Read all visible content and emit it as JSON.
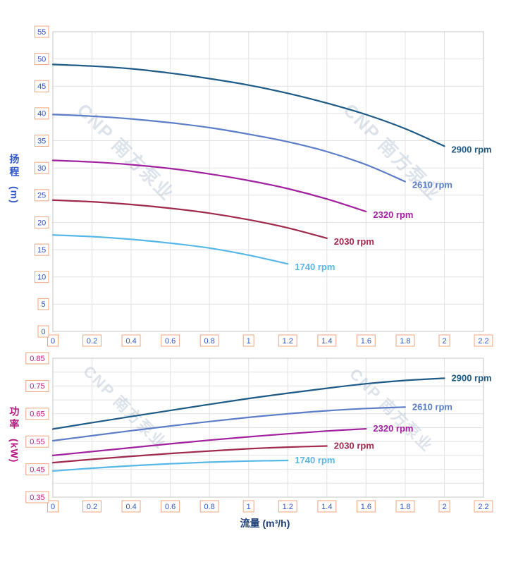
{
  "labels": {
    "head_axis_cn": "扬程",
    "head_axis_unit": "(m)",
    "power_axis_cn": "功率",
    "power_axis_unit": "(kW)",
    "x_axis_title": "流量 (m³/h)"
  },
  "watermark": {
    "text": "CNP 南方泵业",
    "color": "#9fb1c8",
    "opacity": 0.35
  },
  "style": {
    "grid_color": "#e2e2e2",
    "frame_color": "#c6c6c6",
    "tick_box_border": "#eda57f",
    "tick_box_fill": "#ffffff",
    "x_tick_color": "#2f55c9",
    "head_tick_color": "#2f55c9",
    "power_tick_color": "#c2187e",
    "head_title_color": "#2f55c9",
    "power_title_color": "#b5177f",
    "x_title_color": "#1c3f77"
  },
  "chart_data": [
    {
      "id": "head",
      "type": "line",
      "title": "",
      "ylabel": "扬程 (m)",
      "xlabel": "流量 (m³/h)",
      "xlim": [
        0,
        2.2
      ],
      "ylim": [
        0,
        55
      ],
      "grid": true,
      "legend_position": "end-of-line-labels",
      "xticks": [
        0,
        0.2,
        0.4,
        0.6,
        0.8,
        1,
        1.2,
        1.4,
        1.6,
        1.8,
        2,
        2.2
      ],
      "xtick_labels": [
        0,
        0.2,
        0.4,
        0.6,
        0.8,
        1,
        1.2,
        1.4,
        1.6,
        1.8,
        2,
        2.2
      ],
      "yticks": [
        0,
        5,
        10,
        15,
        20,
        25,
        30,
        35,
        40,
        45,
        50,
        55
      ],
      "ytick_labels": [
        0,
        5,
        10,
        15,
        20,
        25,
        30,
        35,
        40,
        45,
        50,
        55
      ],
      "series": [
        {
          "name": "2900 rpm",
          "color": "#1d5a86",
          "x": [
            0,
            0.2,
            0.4,
            0.6,
            0.8,
            1,
            1.2,
            1.4,
            1.6,
            1.8,
            2
          ],
          "y": [
            49.0,
            48.7,
            48.2,
            47.4,
            46.4,
            45.2,
            43.7,
            41.9,
            39.8,
            37.2,
            34.0
          ]
        },
        {
          "name": "2610 rpm",
          "color": "#5b7ec7",
          "x": [
            0,
            0.2,
            0.4,
            0.6,
            0.8,
            1,
            1.2,
            1.4,
            1.6,
            1.8
          ],
          "y": [
            39.8,
            39.5,
            39.0,
            38.3,
            37.4,
            36.2,
            34.8,
            33.0,
            30.6,
            27.5
          ]
        },
        {
          "name": "2320 rpm",
          "color": "#a1219f",
          "x": [
            0,
            0.2,
            0.4,
            0.6,
            0.8,
            1,
            1.2,
            1.4,
            1.6
          ],
          "y": [
            31.4,
            31.1,
            30.6,
            29.9,
            28.9,
            27.7,
            26.2,
            24.3,
            22.0
          ]
        },
        {
          "name": "2030 rpm",
          "color": "#a02a4d",
          "x": [
            0,
            0.2,
            0.4,
            0.6,
            0.8,
            1,
            1.2,
            1.4
          ],
          "y": [
            24.1,
            23.8,
            23.3,
            22.6,
            21.7,
            20.5,
            19.0,
            17.1
          ]
        },
        {
          "name": "1740 rpm",
          "color": "#57b7e6",
          "x": [
            0,
            0.2,
            0.4,
            0.6,
            0.8,
            1,
            1.2
          ],
          "y": [
            17.7,
            17.4,
            16.9,
            16.2,
            15.3,
            14.0,
            12.4
          ]
        }
      ]
    },
    {
      "id": "power",
      "type": "line",
      "title": "",
      "ylabel": "功率 (kW)",
      "xlabel": "流量 (m³/h)",
      "xlim": [
        0,
        2.2
      ],
      "ylim": [
        0.35,
        0.85
      ],
      "grid": true,
      "legend_position": "end-of-line-labels",
      "xticks": [
        0,
        0.2,
        0.4,
        0.6,
        0.8,
        1,
        1.2,
        1.4,
        1.6,
        1.8,
        2,
        2.2
      ],
      "xtick_labels": [
        0,
        0.2,
        0.4,
        0.6,
        0.8,
        1,
        1.2,
        1.4,
        1.6,
        1.8,
        2,
        2.2
      ],
      "yticks": [
        0.35,
        0.4,
        0.45,
        0.5,
        0.55,
        0.6,
        0.65,
        0.7,
        0.75,
        0.8,
        0.85
      ],
      "ytick_labels": [
        0.35,
        0.45,
        0.55,
        0.65,
        0.75,
        0.85
      ],
      "series": [
        {
          "name": "2900 rpm",
          "color": "#1d5a86",
          "x": [
            0,
            0.2,
            0.4,
            0.6,
            0.8,
            1,
            1.2,
            1.4,
            1.6,
            1.8,
            2
          ],
          "y": [
            0.595,
            0.618,
            0.64,
            0.662,
            0.684,
            0.705,
            0.724,
            0.742,
            0.758,
            0.77,
            0.778
          ]
        },
        {
          "name": "2610 rpm",
          "color": "#5b7ec7",
          "x": [
            0,
            0.2,
            0.4,
            0.6,
            0.8,
            1,
            1.2,
            1.4,
            1.6,
            1.8
          ],
          "y": [
            0.553,
            0.571,
            0.589,
            0.606,
            0.622,
            0.637,
            0.65,
            0.661,
            0.669,
            0.674
          ]
        },
        {
          "name": "2320 rpm",
          "color": "#a1219f",
          "x": [
            0,
            0.2,
            0.4,
            0.6,
            0.8,
            1,
            1.2,
            1.4,
            1.6
          ],
          "y": [
            0.5,
            0.514,
            0.528,
            0.542,
            0.555,
            0.567,
            0.578,
            0.588,
            0.596
          ]
        },
        {
          "name": "2030 rpm",
          "color": "#a02a4d",
          "x": [
            0,
            0.2,
            0.4,
            0.6,
            0.8,
            1,
            1.2,
            1.4
          ],
          "y": [
            0.474,
            0.486,
            0.497,
            0.507,
            0.516,
            0.524,
            0.53,
            0.534
          ]
        },
        {
          "name": "1740 rpm",
          "color": "#57b7e6",
          "x": [
            0,
            0.2,
            0.4,
            0.6,
            0.8,
            1,
            1.2
          ],
          "y": [
            0.444,
            0.454,
            0.463,
            0.47,
            0.476,
            0.48,
            0.482
          ]
        }
      ]
    }
  ]
}
